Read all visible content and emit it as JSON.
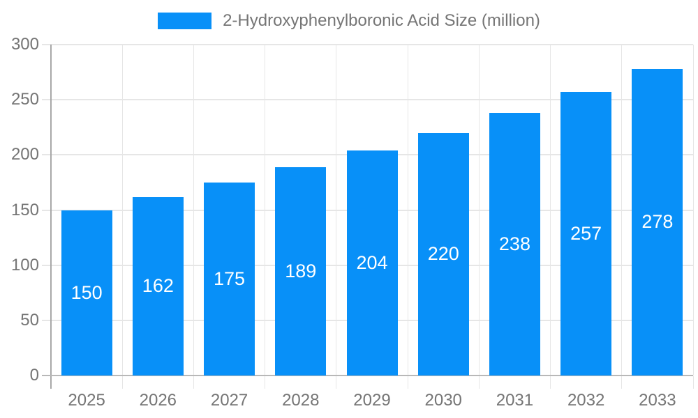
{
  "chart_data": {
    "type": "bar",
    "title": "2-Hydroxyphenylboronic Acid Size (million)",
    "categories": [
      "2025",
      "2026",
      "2027",
      "2028",
      "2029",
      "2030",
      "2031",
      "2032",
      "2033"
    ],
    "series": [
      {
        "name": "2-Hydroxyphenylboronic Acid Size (million)",
        "values": [
          150,
          162,
          175,
          189,
          204,
          220,
          238,
          257,
          278
        ]
      }
    ],
    "xlabel": "",
    "ylabel": "",
    "ylim": [
      0,
      300
    ],
    "yticks": [
      0,
      50,
      100,
      150,
      200,
      250,
      300
    ],
    "grid": true,
    "legend_position": "top-center",
    "value_labels_position": "inside-center",
    "colors": {
      "bar": "#0890f8",
      "value_text": "#ffffff",
      "axis_text": "#757575",
      "grid": "#e6e6e6",
      "axis_line": "#a8a8a8",
      "zero_line": "#b8b8b8",
      "background": "#ffffff"
    }
  }
}
